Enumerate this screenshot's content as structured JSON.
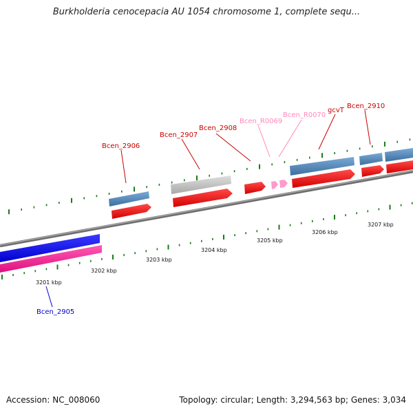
{
  "title": "Burkholderia cenocepacia AU 1054 chromosome 1, complete sequ...",
  "footer": {
    "accession": "Accession: NC_008060",
    "summary": "Topology: circular; Length: 3,294,563 bp; Genes: 3,034"
  },
  "colors": {
    "backbone": "#888888",
    "tick": "#1a7a1a",
    "gene_steel": "#4f86b8",
    "cds_red": "#f00000",
    "blue_gene": "#0a0aff",
    "pink_gene": "#ff2a9a",
    "gray_gene": "#c4c4c4",
    "rna_pink": "#ff9acb",
    "label_red": "#cc0000",
    "label_pink": "#ff88bb",
    "label_blue": "#0000cc"
  },
  "scale": {
    "ticks": [
      {
        "label": "3201 kbp"
      },
      {
        "label": "3202 kbp"
      },
      {
        "label": "3203 kbp"
      },
      {
        "label": "3204 kbp"
      },
      {
        "label": "3205 kbp"
      },
      {
        "label": "3206 kbp"
      },
      {
        "label": "3207 kbp"
      }
    ]
  },
  "genes": [
    {
      "name": "Bcen_2905",
      "strand": "reverse",
      "color": "blue"
    },
    {
      "name": "Bcen_2906",
      "strand": "forward",
      "color": "red"
    },
    {
      "name": "Bcen_2907",
      "strand": "forward",
      "color": "red"
    },
    {
      "name": "Bcen_2908",
      "strand": "forward",
      "color": "red"
    },
    {
      "name": "Bcen_R0069",
      "strand": "forward",
      "color": "pink"
    },
    {
      "name": "Bcen_R0070",
      "strand": "forward",
      "color": "pink"
    },
    {
      "name": "gcvT",
      "strand": "forward",
      "color": "red"
    },
    {
      "name": "Bcen_2910",
      "strand": "forward",
      "color": "red"
    }
  ]
}
